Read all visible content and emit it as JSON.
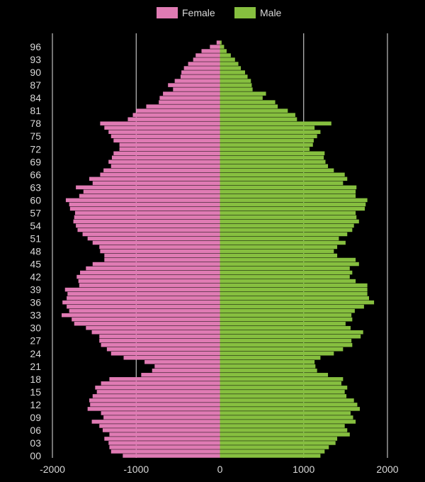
{
  "chart_data": {
    "type": "bar",
    "orientation": "horizontal",
    "layout": "population-pyramid",
    "legend": {
      "position": "top-center",
      "entries": [
        "Female",
        "Male"
      ]
    },
    "colors": {
      "Female": "#e07bb4",
      "Male": "#86bf3f",
      "background": "#000000",
      "grid": "#ffffff",
      "text": "#d9d9d9"
    },
    "grid": {
      "vertical": true,
      "horizontal": false
    },
    "xlim": [
      -2000,
      2000
    ],
    "xticks": [
      -2000,
      -1000,
      0,
      1000,
      2000
    ],
    "xtick_labels": [
      "-2000",
      "-1000",
      "0",
      "1000",
      "2000"
    ],
    "ylabels_shown": [
      "96",
      "93",
      "90",
      "87",
      "84",
      "81",
      "78",
      "75",
      "72",
      "69",
      "66",
      "63",
      "60",
      "57",
      "54",
      "51",
      "48",
      "45",
      "42",
      "39",
      "36",
      "33",
      "30",
      "27",
      "24",
      "21",
      "18",
      "15",
      "12",
      "09",
      "06",
      "03",
      "00"
    ],
    "ages": [
      0,
      1,
      2,
      3,
      4,
      5,
      6,
      7,
      8,
      9,
      10,
      11,
      12,
      13,
      14,
      15,
      16,
      17,
      18,
      19,
      20,
      21,
      22,
      23,
      24,
      25,
      26,
      27,
      28,
      29,
      30,
      31,
      32,
      33,
      34,
      35,
      36,
      37,
      38,
      39,
      40,
      41,
      42,
      43,
      44,
      45,
      46,
      47,
      48,
      49,
      50,
      51,
      52,
      53,
      54,
      55,
      56,
      57,
      58,
      59,
      60,
      61,
      62,
      63,
      64,
      65,
      66,
      67,
      68,
      69,
      70,
      71,
      72,
      73,
      74,
      75,
      76,
      77,
      78,
      79,
      80,
      81,
      82,
      83,
      84,
      85,
      86,
      87,
      88,
      89,
      90,
      91,
      92,
      93,
      94,
      95,
      96,
      97
    ],
    "series": [
      {
        "name": "Female",
        "values": [
          -1160,
          -1300,
          -1320,
          -1330,
          -1380,
          -1320,
          -1400,
          -1440,
          -1530,
          -1390,
          -1420,
          -1580,
          -1550,
          -1560,
          -1520,
          -1470,
          -1490,
          -1420,
          -1320,
          -940,
          -810,
          -780,
          -900,
          -1150,
          -1300,
          -1350,
          -1420,
          -1440,
          -1440,
          -1530,
          -1600,
          -1740,
          -1770,
          -1890,
          -1800,
          -1830,
          -1880,
          -1830,
          -1820,
          -1850,
          -1680,
          -1690,
          -1710,
          -1670,
          -1600,
          -1520,
          -1380,
          -1380,
          -1430,
          -1440,
          -1520,
          -1580,
          -1640,
          -1700,
          -1720,
          -1750,
          -1740,
          -1730,
          -1790,
          -1800,
          -1840,
          -1680,
          -1630,
          -1720,
          -1520,
          -1560,
          -1430,
          -1390,
          -1300,
          -1330,
          -1290,
          -1270,
          -1200,
          -1200,
          -1270,
          -1300,
          -1330,
          -1380,
          -1430,
          -1100,
          -1040,
          -1000,
          -880,
          -730,
          -720,
          -680,
          -560,
          -620,
          -540,
          -470,
          -460,
          -430,
          -380,
          -320,
          -290,
          -220,
          -120,
          -40
        ]
      },
      {
        "name": "Male",
        "values": [
          1200,
          1250,
          1300,
          1380,
          1400,
          1550,
          1520,
          1490,
          1620,
          1590,
          1560,
          1670,
          1640,
          1600,
          1510,
          1490,
          1520,
          1450,
          1470,
          1290,
          1160,
          1140,
          1130,
          1200,
          1360,
          1470,
          1580,
          1570,
          1680,
          1710,
          1560,
          1500,
          1580,
          1570,
          1610,
          1720,
          1840,
          1780,
          1760,
          1760,
          1760,
          1620,
          1550,
          1580,
          1550,
          1660,
          1620,
          1400,
          1360,
          1400,
          1500,
          1420,
          1520,
          1580,
          1600,
          1660,
          1630,
          1620,
          1730,
          1740,
          1760,
          1620,
          1620,
          1630,
          1470,
          1520,
          1490,
          1360,
          1290,
          1260,
          1240,
          1250,
          1070,
          1110,
          1120,
          1160,
          1200,
          1130,
          1330,
          920,
          900,
          810,
          690,
          660,
          510,
          550,
          390,
          380,
          370,
          330,
          300,
          250,
          220,
          180,
          130,
          80,
          50,
          20
        ]
      }
    ]
  }
}
